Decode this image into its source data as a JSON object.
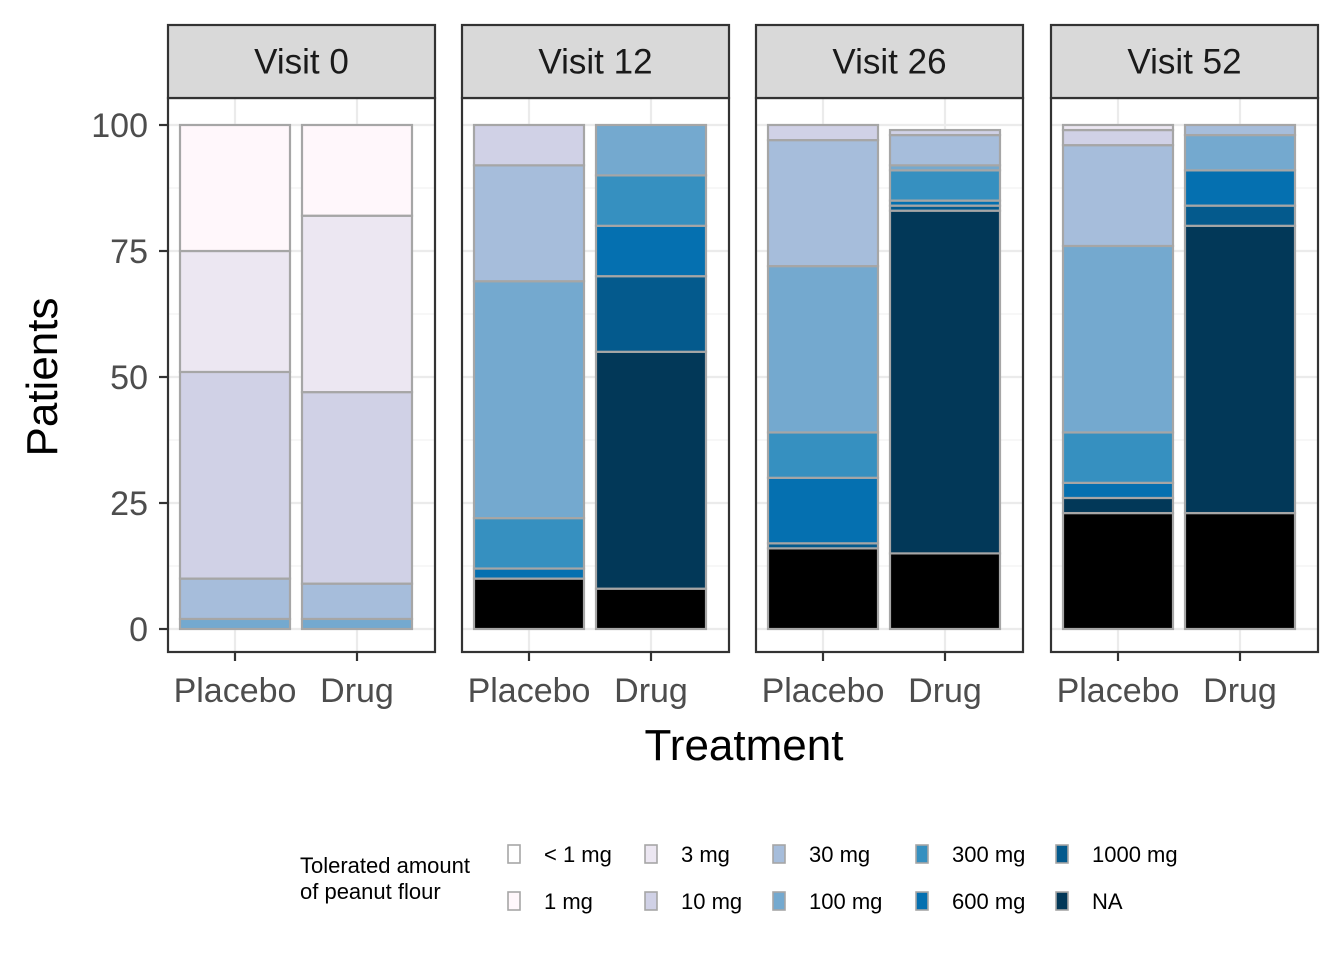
{
  "chart_data": {
    "type": "bar",
    "stacked": true,
    "facet_labels": [
      "Visit 0",
      "Visit 12",
      "Visit 26",
      "Visit 52"
    ],
    "categories": [
      "Placebo",
      "Drug"
    ],
    "xlabel": "Treatment",
    "ylabel": "Patients",
    "ylim": [
      0,
      100
    ],
    "yticks": [
      "0",
      "25",
      "50",
      "75",
      "100"
    ],
    "legend": {
      "title_lines": [
        "Tolerated amount",
        "of peanut flour"
      ],
      "position": "bottom",
      "items": [
        {
          "label": "< 1 mg",
          "color": "#FFFFFF"
        },
        {
          "label": "1 mg",
          "color": "#FFF7FB"
        },
        {
          "label": "3 mg",
          "color": "#ECE7F2"
        },
        {
          "label": "10 mg",
          "color": "#D0D1E6"
        },
        {
          "label": "30 mg",
          "color": "#A6BDDB"
        },
        {
          "label": "100 mg",
          "color": "#74A9CF"
        },
        {
          "label": "300 mg",
          "color": "#3690C0"
        },
        {
          "label": "600 mg",
          "color": "#0570B0"
        },
        {
          "label": "1000 mg",
          "color": "#045A8D"
        },
        {
          "label": "NA",
          "color": "#023858"
        }
      ]
    },
    "segment_colors_bottom_to_top": [
      "#000000",
      "#023858",
      "#045A8D",
      "#0570B0",
      "#3690C0",
      "#74A9CF",
      "#A6BDDB",
      "#D0D1E6",
      "#ECE7F2",
      "#FFF7FB"
    ],
    "panels": [
      {
        "facet": "Visit 0",
        "bars": [
          {
            "category": "Placebo",
            "segments": [
              0,
              0,
              0,
              0,
              0,
              2,
              8,
              41,
              24,
              25
            ]
          },
          {
            "category": "Drug",
            "segments": [
              0,
              0,
              0,
              0,
              0,
              2,
              7,
              38,
              35,
              18
            ]
          }
        ]
      },
      {
        "facet": "Visit 12",
        "bars": [
          {
            "category": "Placebo",
            "segments": [
              10,
              0,
              0,
              2,
              10,
              47,
              23,
              8,
              0,
              0
            ]
          },
          {
            "category": "Drug",
            "segments": [
              8,
              47,
              15,
              10,
              10,
              10,
              0,
              0,
              0,
              0
            ]
          }
        ]
      },
      {
        "facet": "Visit 26",
        "bars": [
          {
            "category": "Placebo",
            "segments": [
              16,
              0,
              1,
              13,
              9,
              33,
              25,
              3,
              0,
              0
            ]
          },
          {
            "category": "Drug",
            "segments": [
              15,
              68,
              1,
              1,
              6,
              1,
              6,
              1,
              0,
              0
            ]
          }
        ]
      },
      {
        "facet": "Visit 52",
        "bars": [
          {
            "category": "Placebo",
            "segments": [
              23,
              3,
              0,
              3,
              10,
              37,
              20,
              3,
              1,
              0
            ]
          },
          {
            "category": "Drug",
            "segments": [
              23,
              57,
              4,
              7,
              0,
              7,
              2,
              0,
              0,
              0
            ]
          }
        ]
      }
    ]
  }
}
